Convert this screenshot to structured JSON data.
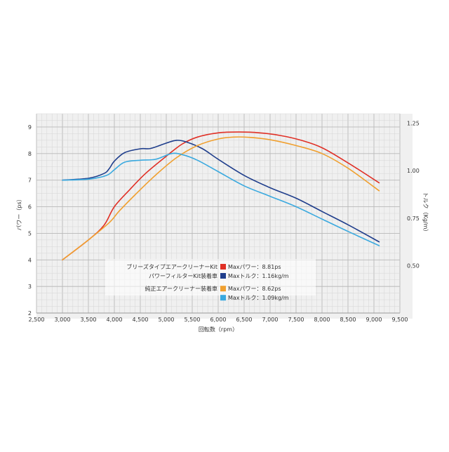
{
  "chart_data": {
    "type": "line",
    "xlabel": "回転数（rpm）",
    "ylabel_left": "パワー（ps）",
    "ylabel_right": "トルク（Kg/m）",
    "xlim": [
      2500,
      9500
    ],
    "ylim_left": [
      2,
      9.5
    ],
    "ylim_right": [
      0.25,
      1.3
    ],
    "x_ticks": [
      2500,
      3000,
      3500,
      4000,
      4500,
      5000,
      5500,
      6000,
      6500,
      7000,
      7500,
      8000,
      8500,
      9000,
      9500
    ],
    "x_tick_labels": [
      "2,500",
      "3,000",
      "3,500",
      "4,000",
      "4,500",
      "5,000",
      "5,500",
      "6,000",
      "6,500",
      "7,000",
      "7,500",
      "8,000",
      "8,500",
      "9,000",
      "9,500"
    ],
    "y_left_ticks": [
      2,
      3,
      4,
      5,
      6,
      7,
      8,
      9
    ],
    "y_left_tick_labels": [
      "2",
      "3",
      "4",
      "5",
      "6",
      "7",
      "8",
      "9"
    ],
    "y_right_ticks": [
      0.5,
      0.75,
      1.0,
      1.25
    ],
    "y_right_tick_labels": [
      "0.50",
      "0.75",
      "1.00",
      "1.25"
    ],
    "grid": true,
    "legend": {
      "position": "bottom-center",
      "groups": [
        {
          "label_lines": [
            "ブリーズタイプエアークリーナーKit",
            "パワーフィルターKit装着車"
          ],
          "entries": [
            {
              "label": "Maxパワー：8.81ps",
              "color": "#e03026"
            },
            {
              "label": "Maxトルク：1.16kg/m",
              "color": "#1f3e8c"
            }
          ]
        },
        {
          "label_lines": [
            "純正エアークリーナー装着車"
          ],
          "entries": [
            {
              "label": "Maxパワー：8.62ps",
              "color": "#f0a030"
            },
            {
              "label": "Maxトルク：1.09kg/m",
              "color": "#3aa9df"
            }
          ]
        }
      ]
    },
    "series": [
      {
        "axis": "left",
        "color": "#e03026",
        "x": [
          3000,
          3500,
          3800,
          4000,
          4300,
          4600,
          5000,
          5300,
          5600,
          6000,
          6400,
          6800,
          7200,
          7600,
          8000,
          8500,
          9100
        ],
        "y": [
          4.0,
          4.75,
          5.3,
          6.0,
          6.65,
          7.25,
          7.9,
          8.35,
          8.62,
          8.78,
          8.81,
          8.78,
          8.68,
          8.5,
          8.22,
          7.65,
          6.9
        ]
      },
      {
        "axis": "right",
        "color": "#1f3e8c",
        "x": [
          3000,
          3500,
          3800,
          3900,
          4000,
          4200,
          4500,
          4700,
          5000,
          5200,
          5400,
          5700,
          6000,
          6500,
          7000,
          7500,
          8000,
          8500,
          9100
        ],
        "y": [
          0.95,
          0.96,
          0.985,
          1.01,
          1.05,
          1.095,
          1.115,
          1.117,
          1.145,
          1.16,
          1.15,
          1.115,
          1.06,
          0.975,
          0.91,
          0.855,
          0.785,
          0.715,
          0.625
        ]
      },
      {
        "axis": "left",
        "color": "#f0a030",
        "x": [
          3000,
          3500,
          3900,
          4100,
          4400,
          4800,
          5200,
          5600,
          6000,
          6300,
          6600,
          7000,
          7500,
          8000,
          8500,
          9100
        ],
        "y": [
          4.0,
          4.75,
          5.4,
          5.85,
          6.45,
          7.2,
          7.85,
          8.3,
          8.55,
          8.62,
          8.61,
          8.52,
          8.3,
          8.0,
          7.45,
          6.6
        ]
      },
      {
        "axis": "right",
        "color": "#3aa9df",
        "x": [
          3000,
          3500,
          3850,
          4000,
          4200,
          4500,
          4800,
          5100,
          5300,
          5600,
          6000,
          6500,
          7000,
          7500,
          8000,
          8500,
          9100
        ],
        "y": [
          0.95,
          0.955,
          0.975,
          1.005,
          1.045,
          1.055,
          1.06,
          1.09,
          1.085,
          1.055,
          0.995,
          0.92,
          0.865,
          0.81,
          0.745,
          0.68,
          0.605
        ]
      }
    ]
  }
}
